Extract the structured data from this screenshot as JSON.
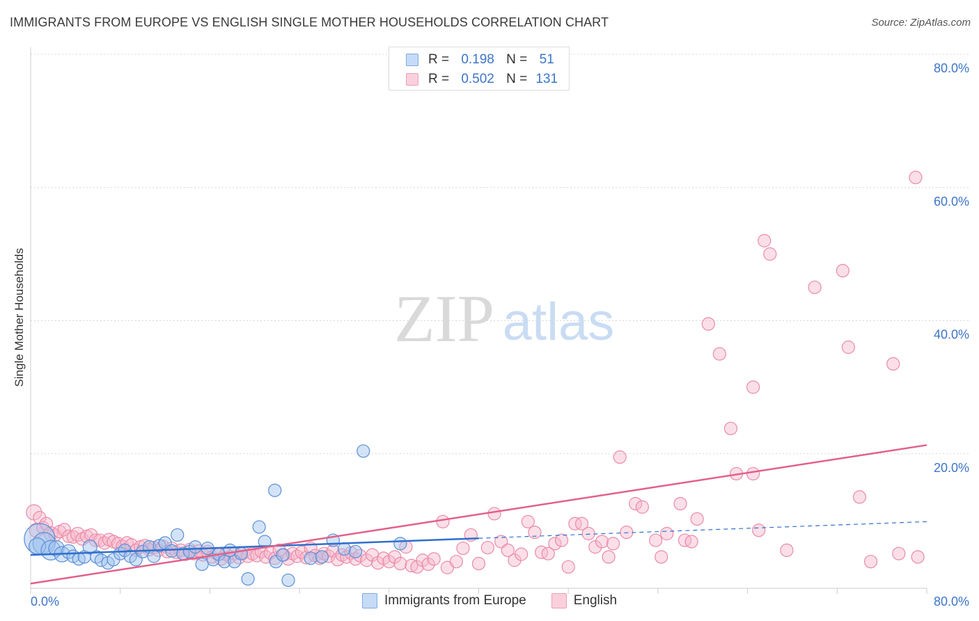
{
  "header": {
    "title": "IMMIGRANTS FROM EUROPE VS ENGLISH SINGLE MOTHER HOUSEHOLDS CORRELATION CHART",
    "source": "Source: ZipAtlas.com"
  },
  "watermark": {
    "zip": "ZIP",
    "atlas": "atlas"
  },
  "stats": {
    "rows": [
      {
        "r_label": "R =",
        "r_value": "0.198",
        "n_label": "N =",
        "n_value": "51",
        "color": "#9dc1ee"
      },
      {
        "r_label": "R =",
        "r_value": "0.502",
        "n_label": "N =",
        "n_value": "131",
        "color": "#f4a9c0"
      }
    ]
  },
  "chart_data": {
    "type": "scatter",
    "title": "IMMIGRANTS FROM EUROPE VS ENGLISH SINGLE MOTHER HOUSEHOLDS CORRELATION CHART",
    "xlabel": "",
    "ylabel": "Single Mother Households",
    "xlim": [
      0,
      80
    ],
    "ylim": [
      0,
      80
    ],
    "x_tick_labels": [
      "0.0%",
      "80.0%"
    ],
    "y_tick_labels": [
      "20.0%",
      "40.0%",
      "60.0%",
      "80.0%"
    ],
    "y_ticks": [
      20,
      40,
      60,
      80
    ],
    "grid": true,
    "legend_position": "bottom",
    "series": [
      {
        "name": "Immigrants from Europe",
        "color": "#9dc1ee",
        "stroke": "#5b8fd6",
        "trend": {
          "x": [
            0,
            40
          ],
          "y": [
            4.8,
            7.3
          ],
          "dashed_to": [
            80,
            9.8
          ],
          "color": "#2f6fcc"
        },
        "points": [
          {
            "x": 0.8,
            "y": 7.2,
            "s": 22
          },
          {
            "x": 1.2,
            "y": 6.5,
            "s": 16
          },
          {
            "x": 0.6,
            "y": 6.1,
            "s": 12
          },
          {
            "x": 1.8,
            "y": 5.5,
            "s": 14
          },
          {
            "x": 2.3,
            "y": 5.8,
            "s": 11
          },
          {
            "x": 2.8,
            "y": 4.9,
            "s": 11
          },
          {
            "x": 3.4,
            "y": 5.3,
            "s": 10
          },
          {
            "x": 3.8,
            "y": 4.6,
            "s": 9
          },
          {
            "x": 4.3,
            "y": 4.2,
            "s": 9
          },
          {
            "x": 4.8,
            "y": 4.5,
            "s": 9
          },
          {
            "x": 5.3,
            "y": 6.0,
            "s": 10
          },
          {
            "x": 5.9,
            "y": 4.5,
            "s": 9
          },
          {
            "x": 6.3,
            "y": 4.0,
            "s": 9
          },
          {
            "x": 6.9,
            "y": 3.6,
            "s": 9
          },
          {
            "x": 7.4,
            "y": 4.1,
            "s": 9
          },
          {
            "x": 8.0,
            "y": 5.0,
            "s": 9
          },
          {
            "x": 8.4,
            "y": 5.5,
            "s": 9
          },
          {
            "x": 8.9,
            "y": 4.6,
            "s": 9
          },
          {
            "x": 9.4,
            "y": 4.1,
            "s": 9
          },
          {
            "x": 10.0,
            "y": 5.3,
            "s": 9
          },
          {
            "x": 10.6,
            "y": 6.0,
            "s": 9
          },
          {
            "x": 11.0,
            "y": 4.6,
            "s": 9
          },
          {
            "x": 11.5,
            "y": 6.2,
            "s": 9
          },
          {
            "x": 12.0,
            "y": 6.6,
            "s": 9
          },
          {
            "x": 12.6,
            "y": 5.4,
            "s": 9
          },
          {
            "x": 13.1,
            "y": 7.8,
            "s": 9
          },
          {
            "x": 13.6,
            "y": 5.0,
            "s": 9
          },
          {
            "x": 14.2,
            "y": 5.3,
            "s": 9
          },
          {
            "x": 14.7,
            "y": 6.0,
            "s": 9
          },
          {
            "x": 15.3,
            "y": 3.4,
            "s": 9
          },
          {
            "x": 15.8,
            "y": 5.8,
            "s": 9
          },
          {
            "x": 16.3,
            "y": 4.1,
            "s": 9
          },
          {
            "x": 16.8,
            "y": 4.9,
            "s": 9
          },
          {
            "x": 17.3,
            "y": 3.8,
            "s": 9
          },
          {
            "x": 17.8,
            "y": 5.5,
            "s": 9
          },
          {
            "x": 18.2,
            "y": 3.8,
            "s": 9
          },
          {
            "x": 18.8,
            "y": 5.0,
            "s": 9
          },
          {
            "x": 19.4,
            "y": 1.2,
            "s": 9
          },
          {
            "x": 20.4,
            "y": 9.0,
            "s": 9
          },
          {
            "x": 20.9,
            "y": 6.8,
            "s": 9
          },
          {
            "x": 21.8,
            "y": 14.5,
            "s": 9
          },
          {
            "x": 21.9,
            "y": 3.8,
            "s": 9
          },
          {
            "x": 22.5,
            "y": 4.8,
            "s": 9
          },
          {
            "x": 23.0,
            "y": 1.0,
            "s": 9
          },
          {
            "x": 25.0,
            "y": 4.3,
            "s": 9
          },
          {
            "x": 26.0,
            "y": 4.5,
            "s": 9
          },
          {
            "x": 27.0,
            "y": 7.0,
            "s": 9
          },
          {
            "x": 28.0,
            "y": 5.7,
            "s": 9
          },
          {
            "x": 29.0,
            "y": 5.3,
            "s": 9
          },
          {
            "x": 29.7,
            "y": 20.4,
            "s": 9
          },
          {
            "x": 33.0,
            "y": 6.5,
            "s": 9
          }
        ]
      },
      {
        "name": "English",
        "color": "#f7b8cb",
        "stroke": "#ea8aa8",
        "trend": {
          "x": [
            0,
            80
          ],
          "y": [
            0.5,
            21.3
          ],
          "color": "#e2608a"
        },
        "points": [
          {
            "x": 0.3,
            "y": 11.2,
            "s": 11
          },
          {
            "x": 0.5,
            "y": 8.5,
            "s": 10
          },
          {
            "x": 0.8,
            "y": 10.4,
            "s": 9
          },
          {
            "x": 1.1,
            "y": 8.9,
            "s": 9
          },
          {
            "x": 1.4,
            "y": 9.5,
            "s": 9
          },
          {
            "x": 1.8,
            "y": 8.0,
            "s": 10
          },
          {
            "x": 2.2,
            "y": 7.8,
            "s": 9
          },
          {
            "x": 2.6,
            "y": 8.3,
            "s": 9
          },
          {
            "x": 3.0,
            "y": 8.6,
            "s": 9
          },
          {
            "x": 3.4,
            "y": 7.6,
            "s": 9
          },
          {
            "x": 3.8,
            "y": 7.5,
            "s": 9
          },
          {
            "x": 4.2,
            "y": 7.9,
            "s": 10
          },
          {
            "x": 4.6,
            "y": 7.2,
            "s": 9
          },
          {
            "x": 5.0,
            "y": 7.6,
            "s": 9
          },
          {
            "x": 5.4,
            "y": 7.8,
            "s": 9
          },
          {
            "x": 5.8,
            "y": 7.0,
            "s": 9
          },
          {
            "x": 6.2,
            "y": 7.0,
            "s": 9
          },
          {
            "x": 6.6,
            "y": 6.6,
            "s": 9
          },
          {
            "x": 7.0,
            "y": 7.1,
            "s": 9
          },
          {
            "x": 7.4,
            "y": 6.8,
            "s": 9
          },
          {
            "x": 7.8,
            "y": 6.5,
            "s": 9
          },
          {
            "x": 8.2,
            "y": 6.1,
            "s": 9
          },
          {
            "x": 8.6,
            "y": 6.6,
            "s": 9
          },
          {
            "x": 9.0,
            "y": 6.3,
            "s": 9
          },
          {
            "x": 9.4,
            "y": 5.5,
            "s": 9
          },
          {
            "x": 9.8,
            "y": 6.0,
            "s": 9
          },
          {
            "x": 10.2,
            "y": 6.2,
            "s": 9
          },
          {
            "x": 10.6,
            "y": 5.6,
            "s": 9
          },
          {
            "x": 11.0,
            "y": 5.9,
            "s": 9
          },
          {
            "x": 11.4,
            "y": 5.5,
            "s": 9
          },
          {
            "x": 11.8,
            "y": 6.1,
            "s": 9
          },
          {
            "x": 12.2,
            "y": 5.3,
            "s": 9
          },
          {
            "x": 12.6,
            "y": 5.8,
            "s": 9
          },
          {
            "x": 13.0,
            "y": 5.2,
            "s": 9
          },
          {
            "x": 13.4,
            "y": 5.5,
            "s": 9
          },
          {
            "x": 13.8,
            "y": 4.9,
            "s": 9
          },
          {
            "x": 14.2,
            "y": 5.6,
            "s": 9
          },
          {
            "x": 14.6,
            "y": 5.0,
            "s": 9
          },
          {
            "x": 15.0,
            "y": 5.4,
            "s": 9
          },
          {
            "x": 15.4,
            "y": 4.8,
            "s": 9
          },
          {
            "x": 15.8,
            "y": 5.3,
            "s": 9
          },
          {
            "x": 16.2,
            "y": 4.5,
            "s": 9
          },
          {
            "x": 16.6,
            "y": 5.0,
            "s": 9
          },
          {
            "x": 17.0,
            "y": 4.2,
            "s": 9
          },
          {
            "x": 17.4,
            "y": 4.9,
            "s": 9
          },
          {
            "x": 17.8,
            "y": 4.5,
            "s": 9
          },
          {
            "x": 18.2,
            "y": 5.0,
            "s": 9
          },
          {
            "x": 18.6,
            "y": 4.4,
            "s": 9
          },
          {
            "x": 19.0,
            "y": 5.1,
            "s": 9
          },
          {
            "x": 19.4,
            "y": 4.6,
            "s": 9
          },
          {
            "x": 19.8,
            "y": 5.0,
            "s": 9
          },
          {
            "x": 20.2,
            "y": 4.7,
            "s": 9
          },
          {
            "x": 20.6,
            "y": 5.3,
            "s": 9
          },
          {
            "x": 21.0,
            "y": 4.5,
            "s": 9
          },
          {
            "x": 21.4,
            "y": 5.1,
            "s": 9
          },
          {
            "x": 21.8,
            "y": 4.3,
            "s": 9
          },
          {
            "x": 22.2,
            "y": 5.5,
            "s": 9
          },
          {
            "x": 22.6,
            "y": 4.8,
            "s": 9
          },
          {
            "x": 23.0,
            "y": 4.2,
            "s": 9
          },
          {
            "x": 23.4,
            "y": 5.0,
            "s": 9
          },
          {
            "x": 23.8,
            "y": 4.6,
            "s": 9
          },
          {
            "x": 24.2,
            "y": 5.2,
            "s": 9
          },
          {
            "x": 24.6,
            "y": 4.4,
            "s": 9
          },
          {
            "x": 25.0,
            "y": 5.8,
            "s": 9
          },
          {
            "x": 25.4,
            "y": 4.7,
            "s": 9
          },
          {
            "x": 25.8,
            "y": 4.3,
            "s": 9
          },
          {
            "x": 26.2,
            "y": 5.0,
            "s": 9
          },
          {
            "x": 26.6,
            "y": 4.6,
            "s": 9
          },
          {
            "x": 27.0,
            "y": 5.4,
            "s": 9
          },
          {
            "x": 27.4,
            "y": 4.1,
            "s": 9
          },
          {
            "x": 27.8,
            "y": 4.8,
            "s": 9
          },
          {
            "x": 28.2,
            "y": 4.5,
            "s": 9
          },
          {
            "x": 28.6,
            "y": 5.1,
            "s": 9
          },
          {
            "x": 29.0,
            "y": 4.2,
            "s": 9
          },
          {
            "x": 29.4,
            "y": 4.7,
            "s": 9
          },
          {
            "x": 30.0,
            "y": 4.0,
            "s": 9
          },
          {
            "x": 30.5,
            "y": 4.8,
            "s": 9
          },
          {
            "x": 31.0,
            "y": 3.6,
            "s": 9
          },
          {
            "x": 31.5,
            "y": 4.3,
            "s": 9
          },
          {
            "x": 32.0,
            "y": 3.8,
            "s": 9
          },
          {
            "x": 32.5,
            "y": 4.5,
            "s": 9
          },
          {
            "x": 33.0,
            "y": 3.5,
            "s": 9
          },
          {
            "x": 33.5,
            "y": 6.0,
            "s": 9
          },
          {
            "x": 34.0,
            "y": 3.2,
            "s": 9
          },
          {
            "x": 34.5,
            "y": 3.0,
            "s": 9
          },
          {
            "x": 35.0,
            "y": 4.0,
            "s": 9
          },
          {
            "x": 35.5,
            "y": 3.4,
            "s": 9
          },
          {
            "x": 36.0,
            "y": 4.2,
            "s": 9
          },
          {
            "x": 36.8,
            "y": 9.8,
            "s": 9
          },
          {
            "x": 37.2,
            "y": 2.9,
            "s": 9
          },
          {
            "x": 38.0,
            "y": 3.8,
            "s": 9
          },
          {
            "x": 38.6,
            "y": 5.8,
            "s": 9
          },
          {
            "x": 39.3,
            "y": 7.8,
            "s": 9
          },
          {
            "x": 40.0,
            "y": 3.5,
            "s": 9
          },
          {
            "x": 40.8,
            "y": 5.9,
            "s": 9
          },
          {
            "x": 41.4,
            "y": 11.0,
            "s": 9
          },
          {
            "x": 42.0,
            "y": 6.8,
            "s": 9
          },
          {
            "x": 42.6,
            "y": 5.5,
            "s": 9
          },
          {
            "x": 43.2,
            "y": 4.0,
            "s": 9
          },
          {
            "x": 43.8,
            "y": 4.9,
            "s": 9
          },
          {
            "x": 44.4,
            "y": 9.8,
            "s": 9
          },
          {
            "x": 45.0,
            "y": 8.2,
            "s": 9
          },
          {
            "x": 45.6,
            "y": 5.2,
            "s": 9
          },
          {
            "x": 46.2,
            "y": 5.0,
            "s": 9
          },
          {
            "x": 46.8,
            "y": 6.5,
            "s": 9
          },
          {
            "x": 47.4,
            "y": 7.0,
            "s": 9
          },
          {
            "x": 48.0,
            "y": 3.0,
            "s": 9
          },
          {
            "x": 48.6,
            "y": 9.5,
            "s": 9
          },
          {
            "x": 49.2,
            "y": 9.5,
            "s": 9
          },
          {
            "x": 49.8,
            "y": 8.0,
            "s": 9
          },
          {
            "x": 50.4,
            "y": 6.0,
            "s": 9
          },
          {
            "x": 51.0,
            "y": 6.8,
            "s": 9
          },
          {
            "x": 51.6,
            "y": 4.5,
            "s": 9
          },
          {
            "x": 52.0,
            "y": 6.5,
            "s": 9
          },
          {
            "x": 52.6,
            "y": 19.5,
            "s": 9
          },
          {
            "x": 53.2,
            "y": 8.2,
            "s": 9
          },
          {
            "x": 54.0,
            "y": 12.5,
            "s": 9
          },
          {
            "x": 54.6,
            "y": 12.0,
            "s": 9
          },
          {
            "x": 55.8,
            "y": 7.0,
            "s": 9
          },
          {
            "x": 56.3,
            "y": 4.5,
            "s": 9
          },
          {
            "x": 56.8,
            "y": 8.0,
            "s": 9
          },
          {
            "x": 58.0,
            "y": 12.5,
            "s": 9
          },
          {
            "x": 58.4,
            "y": 7.0,
            "s": 9
          },
          {
            "x": 59.0,
            "y": 6.8,
            "s": 9
          },
          {
            "x": 59.5,
            "y": 10.2,
            "s": 9
          },
          {
            "x": 60.5,
            "y": 39.5,
            "s": 9
          },
          {
            "x": 61.5,
            "y": 35.0,
            "s": 9
          },
          {
            "x": 62.5,
            "y": 23.8,
            "s": 9
          },
          {
            "x": 63.0,
            "y": 17.0,
            "s": 9
          },
          {
            "x": 64.5,
            "y": 30.0,
            "s": 9
          },
          {
            "x": 64.5,
            "y": 17.0,
            "s": 9
          },
          {
            "x": 65.0,
            "y": 8.5,
            "s": 9
          },
          {
            "x": 65.5,
            "y": 52.0,
            "s": 9
          },
          {
            "x": 66.0,
            "y": 50.0,
            "s": 9
          },
          {
            "x": 67.5,
            "y": 5.5,
            "s": 9
          },
          {
            "x": 70.0,
            "y": 45.0,
            "s": 9
          },
          {
            "x": 72.5,
            "y": 47.5,
            "s": 9
          },
          {
            "x": 73.0,
            "y": 36.0,
            "s": 9
          },
          {
            "x": 74.0,
            "y": 13.5,
            "s": 9
          },
          {
            "x": 75.0,
            "y": 3.8,
            "s": 9
          },
          {
            "x": 77.0,
            "y": 33.5,
            "s": 9
          },
          {
            "x": 77.5,
            "y": 5.0,
            "s": 9
          },
          {
            "x": 79.0,
            "y": 61.5,
            "s": 9
          },
          {
            "x": 79.2,
            "y": 4.5,
            "s": 9
          }
        ]
      }
    ]
  }
}
